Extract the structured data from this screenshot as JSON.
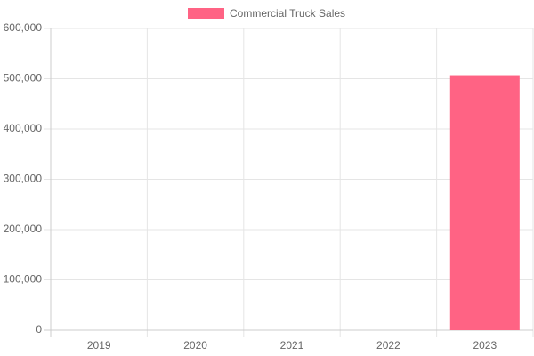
{
  "chart_data": {
    "type": "bar",
    "categories": [
      "2019",
      "2020",
      "2021",
      "2022",
      "2023"
    ],
    "series": [
      {
        "name": "Commercial Truck Sales",
        "color": "#ff6384",
        "values": [
          0,
          0,
          0,
          0,
          507000
        ]
      }
    ],
    "ylim": [
      0,
      600000
    ],
    "yticks": [
      0,
      {
        "value": 100000,
        "label": "100,000"
      },
      {
        "value": 200000,
        "label": "200,000"
      },
      {
        "value": 300000,
        "label": "300,000"
      },
      {
        "value": 400000,
        "label": "400,000"
      },
      {
        "value": 500000,
        "label": "500,000"
      },
      {
        "value": 600000,
        "label": "600,000"
      }
    ],
    "grid": true,
    "legend": "top"
  }
}
